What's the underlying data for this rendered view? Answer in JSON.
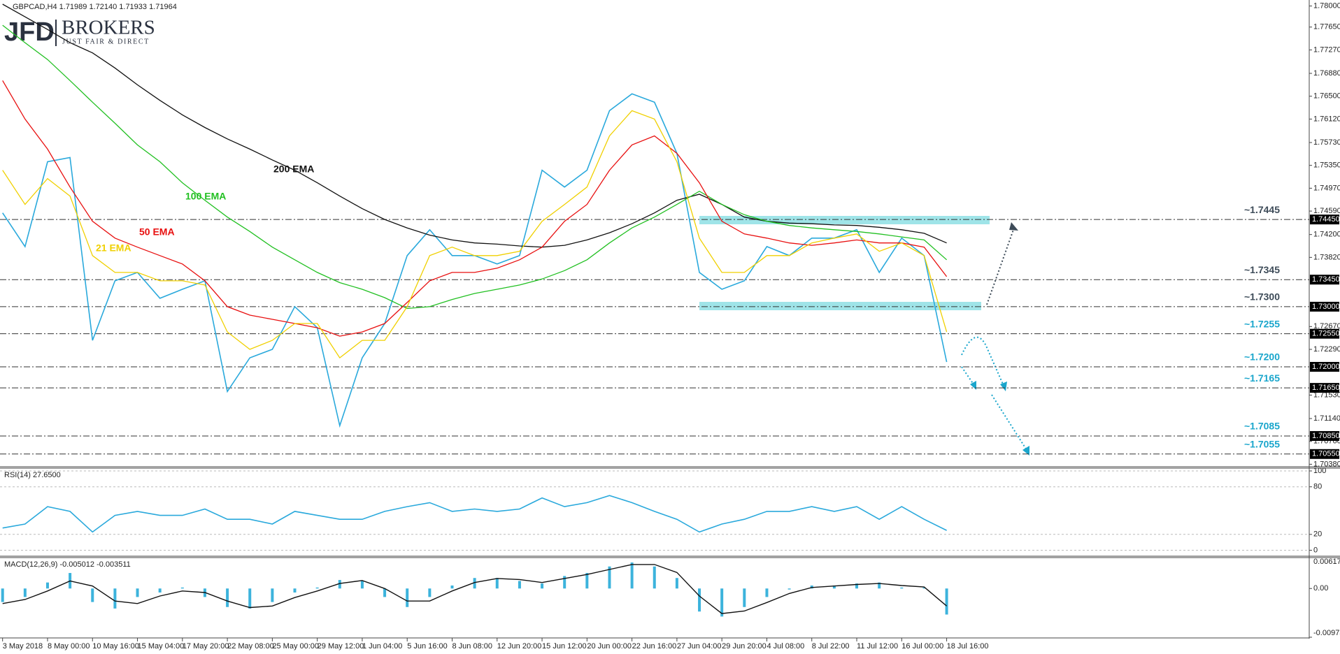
{
  "brand": {
    "name": "JFD",
    "suffix": "BROKERS",
    "tagline": "JUST FAIR & DIRECT"
  },
  "chart_data": [
    {
      "type": "line",
      "title": "GBPCAD,H4  1.71989 1.72140 1.71933 1.71964",
      "categories": [
        "3 May 2018",
        null,
        "8 May 00:00",
        null,
        "10 May 16:00",
        null,
        "15 May 04:00",
        null,
        "17 May 20:00",
        null,
        "22 May 08:00",
        null,
        "25 May 00:00",
        null,
        "29 May 12:00",
        null,
        "1 Jun 04:00",
        null,
        "5 Jun 16:00",
        null,
        "8 Jun 08:00",
        null,
        "12 Jun 20:00",
        null,
        "15 Jun 12:00",
        null,
        "20 Jun 00:00",
        null,
        "22 Jun 16:00",
        null,
        "27 Jun 04:00",
        null,
        "29 Jun 20:00",
        null,
        "4 Jul 08:00",
        null,
        "8 Jul 22:00",
        null,
        "11 Jul 12:00",
        null,
        "16 Jul 00:00",
        null,
        "18 Jul 16:00"
      ],
      "series": [
        {
          "color": "#2aa9dc",
          "values": [
            1.7456,
            1.74,
            1.7541,
            1.7548,
            1.7244,
            1.7343,
            1.7357,
            1.7314,
            1.7329,
            1.7343,
            1.7159,
            1.7215,
            1.7229,
            1.73,
            1.7265,
            1.7102,
            1.7215,
            1.7272,
            1.7385,
            1.7428,
            1.7385,
            1.7385,
            1.7371,
            1.7385,
            1.7527,
            1.7499,
            1.7527,
            1.7626,
            1.7654,
            1.764,
            1.7555,
            1.7357,
            1.7329,
            1.7343,
            1.74,
            1.7385,
            1.7414,
            1.7414,
            1.7428,
            1.7357,
            1.7414,
            1.7385,
            1.7208
          ]
        },
        {
          "name": "200 EMA",
          "color": "#111111",
          "values": [
            1.7803,
            1.7782,
            1.7761,
            1.7739,
            1.7722,
            1.7697,
            1.7669,
            1.7643,
            1.7619,
            1.7598,
            1.7579,
            1.7562,
            1.7544,
            1.7527,
            1.7506,
            1.7484,
            1.7463,
            1.7445,
            1.7431,
            1.7419,
            1.7411,
            1.7406,
            1.7404,
            1.7401,
            1.7399,
            1.7402,
            1.7411,
            1.7423,
            1.7438,
            1.7456,
            1.7477,
            1.7487,
            1.747,
            1.7449,
            1.7442,
            1.7439,
            1.7438,
            1.7436,
            1.7435,
            1.7432,
            1.7428,
            1.7422,
            1.7406
          ]
        },
        {
          "name": "100 EMA",
          "color": "#22c022",
          "values": [
            1.7768,
            1.7739,
            1.7711,
            1.7676,
            1.764,
            1.7605,
            1.7569,
            1.7541,
            1.7506,
            1.7477,
            1.7449,
            1.7425,
            1.7399,
            1.7378,
            1.7357,
            1.734,
            1.7329,
            1.7315,
            1.7297,
            1.73,
            1.7312,
            1.7322,
            1.7329,
            1.7336,
            1.7346,
            1.736,
            1.7378,
            1.7406,
            1.7431,
            1.7449,
            1.747,
            1.7492,
            1.747,
            1.7453,
            1.7442,
            1.7435,
            1.7431,
            1.7428,
            1.7425,
            1.7421,
            1.7416,
            1.7411,
            1.7378
          ]
        },
        {
          "name": "50 EMA",
          "color": "#e81010",
          "values": [
            1.7676,
            1.7612,
            1.7562,
            1.7499,
            1.7442,
            1.7414,
            1.7399,
            1.7385,
            1.7371,
            1.7343,
            1.73,
            1.7286,
            1.7279,
            1.7272,
            1.7265,
            1.7251,
            1.7258,
            1.7272,
            1.7307,
            1.7343,
            1.7357,
            1.7357,
            1.7364,
            1.7378,
            1.7399,
            1.7442,
            1.747,
            1.7527,
            1.7569,
            1.7584,
            1.7555,
            1.7506,
            1.7442,
            1.7421,
            1.7414,
            1.7406,
            1.7402,
            1.7406,
            1.7411,
            1.7406,
            1.7406,
            1.7399,
            1.735
          ]
        },
        {
          "name": "21 EMA",
          "color": "#f0d000",
          "values": [
            1.7527,
            1.747,
            1.7513,
            1.7484,
            1.7385,
            1.7357,
            1.7357,
            1.7343,
            1.7343,
            1.7336,
            1.7258,
            1.7229,
            1.7244,
            1.7272,
            1.7272,
            1.7215,
            1.7244,
            1.7244,
            1.73,
            1.7385,
            1.7399,
            1.7385,
            1.7385,
            1.7392,
            1.7442,
            1.747,
            1.7499,
            1.7584,
            1.7626,
            1.7612,
            1.7541,
            1.7414,
            1.7357,
            1.7357,
            1.7385,
            1.7385,
            1.7406,
            1.7414,
            1.7421,
            1.7392,
            1.7406,
            1.7385,
            1.7258
          ]
        }
      ],
      "ylim": [
        1.7035,
        1.781
      ],
      "yticks": [
        {
          "value": 1.78,
          "label": "1.78000"
        },
        {
          "value": 1.7765,
          "label": "1.77650"
        },
        {
          "value": 1.7727,
          "label": "1.77270"
        },
        {
          "value": 1.7688,
          "label": "1.76880"
        },
        {
          "value": 1.765,
          "label": "1.76500"
        },
        {
          "value": 1.7612,
          "label": "1.76120"
        },
        {
          "value": 1.7573,
          "label": "1.75730"
        },
        {
          "value": 1.7535,
          "label": "1.75350"
        },
        {
          "value": 1.7497,
          "label": "1.74970"
        },
        {
          "value": 1.7459,
          "label": "1.74590"
        },
        {
          "value": 1.742,
          "label": "1.74200"
        },
        {
          "value": 1.7382,
          "label": "1.73820"
        },
        {
          "value": 1.7267,
          "label": "1.72670"
        },
        {
          "value": 1.7229,
          "label": "1.72290"
        },
        {
          "value": 1.7153,
          "label": "1.71530"
        },
        {
          "value": 1.7114,
          "label": "1.71140"
        },
        {
          "value": 1.7076,
          "label": "1.70760"
        },
        {
          "value": 1.7038,
          "label": "1.70380"
        }
      ],
      "levels": [
        {
          "value": 1.7445,
          "label": "~1.7445",
          "axis_label": "1.74450",
          "color": "#3d4b58"
        },
        {
          "value": 1.7345,
          "label": "~1.7345",
          "axis_label": "1.73450",
          "color": "#3d4b58"
        },
        {
          "value": 1.73,
          "label": "~1.7300",
          "axis_label": "1.73000",
          "color": "#3d4b58"
        },
        {
          "value": 1.7255,
          "label": "~1.7255",
          "axis_label": "1.72550",
          "color": "#1aa6cc"
        },
        {
          "value": 1.72,
          "label": "~1.7200",
          "axis_label": "1.72000",
          "color": "#1aa6cc"
        },
        {
          "value": 1.7165,
          "label": "~1.7165",
          "axis_label": "1.71650",
          "color": "#1aa6cc"
        },
        {
          "value": 1.7085,
          "label": "~1.7085",
          "axis_label": "1.70850",
          "color": "#1aa6cc"
        },
        {
          "value": 1.7055,
          "label": "~1.7055",
          "axis_label": "1.70550",
          "color": "#1aa6cc"
        }
      ]
    },
    {
      "type": "line",
      "title": "RSI(14) 27.6500",
      "series": [
        {
          "color": "#2aa9dc",
          "values": [
            28,
            33,
            55,
            49,
            23,
            44,
            49,
            44,
            44,
            52,
            39,
            39,
            33,
            49,
            44,
            39,
            39,
            49,
            55,
            60,
            49,
            52,
            49,
            52,
            66,
            55,
            60,
            69,
            60,
            49,
            39,
            23,
            33,
            39,
            49,
            49,
            55,
            49,
            55,
            39,
            55,
            39,
            25
          ]
        }
      ],
      "ylim": [
        0,
        100
      ],
      "yticks": [
        0,
        20,
        80,
        100
      ],
      "grid": true
    },
    {
      "type": "bar",
      "title": "MACD(12,26,9) -0.005012 -0.003511",
      "series": [
        {
          "type": "bar",
          "color": "#3cb3dc",
          "values": [
            -0.0027,
            -0.0017,
            0.0012,
            0.0031,
            -0.0027,
            -0.004,
            -0.0017,
            -0.0008,
            0.0002,
            -0.0017,
            -0.0037,
            -0.004,
            -0.0027,
            -0.0008,
            0.0002,
            0.0017,
            0.0015,
            -0.0017,
            -0.0037,
            -0.0017,
            0.0006,
            0.0021,
            0.0021,
            0.0015,
            0.001,
            0.0025,
            0.0031,
            0.0044,
            0.0052,
            0.0044,
            0.0021,
            -0.0046,
            -0.0056,
            -0.0037,
            -0.0017,
            -0.0002,
            0.0006,
            0.0006,
            0.001,
            0.0012,
            0.0002,
            0.0002,
            -0.0052
          ]
        },
        {
          "type": "line",
          "color": "#111111",
          "values": [
            -0.003,
            -0.0022,
            -0.0005,
            0.0015,
            0.0005,
            -0.0025,
            -0.003,
            -0.0015,
            -0.0005,
            -0.0008,
            -0.0025,
            -0.0038,
            -0.0035,
            -0.0018,
            -0.0005,
            0.001,
            0.0016,
            0,
            -0.0025,
            -0.0025,
            -0.0005,
            0.0012,
            0.002,
            0.0018,
            0.0012,
            0.002,
            0.0028,
            0.0038,
            0.0048,
            0.0048,
            0.0032,
            -0.0015,
            -0.005,
            -0.0045,
            -0.0028,
            -0.001,
            0.0002,
            0.0005,
            0.0008,
            0.001,
            0.0006,
            0.0003,
            -0.0035
          ]
        }
      ],
      "ylim": [
        -0.009735,
        0.006178
      ],
      "yticks": [
        -0.009735,
        {
          "value": 0,
          "label": "0.00"
        },
        0.006178
      ]
    }
  ]
}
